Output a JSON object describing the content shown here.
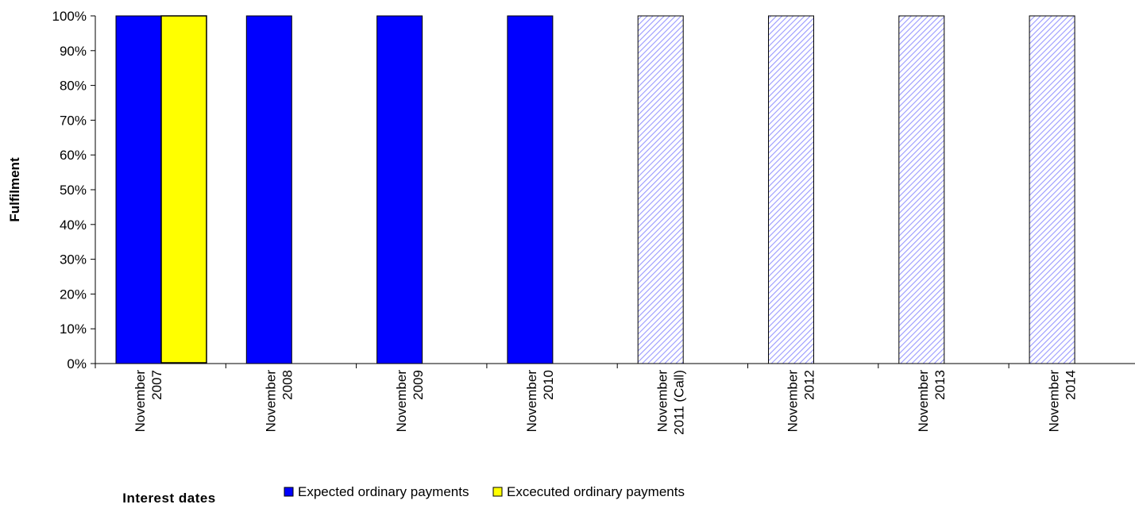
{
  "chart_data": {
    "type": "bar",
    "title": "",
    "xlabel": "Interest dates",
    "ylabel": "Fulfilment",
    "ylim": [
      0,
      100
    ],
    "y_tick_step": 10,
    "y_tick_format": "percent",
    "grid": false,
    "legend_position": "bottom",
    "categories": [
      [
        "November",
        "2007"
      ],
      [
        "November",
        "2008"
      ],
      [
        "November",
        "2009"
      ],
      [
        "November",
        "2010"
      ],
      [
        "November",
        "2011 (Call)"
      ],
      [
        "November",
        "2012"
      ],
      [
        "November",
        "2013"
      ],
      [
        "November",
        "2014"
      ]
    ],
    "series": [
      {
        "name": "Expected ordinary payments",
        "color": "#0000ff",
        "values": [
          100,
          100,
          100,
          100,
          100,
          100,
          100,
          100
        ],
        "styles": [
          "solid",
          "solid",
          "solid",
          "solid",
          "hatched",
          "hatched",
          "hatched",
          "hatched"
        ]
      },
      {
        "name": "Excecuted ordinary payments",
        "color": "#ffff00",
        "values": [
          100,
          null,
          null,
          null,
          null,
          null,
          null,
          null
        ]
      }
    ],
    "hatch_color": "#9999ff"
  }
}
